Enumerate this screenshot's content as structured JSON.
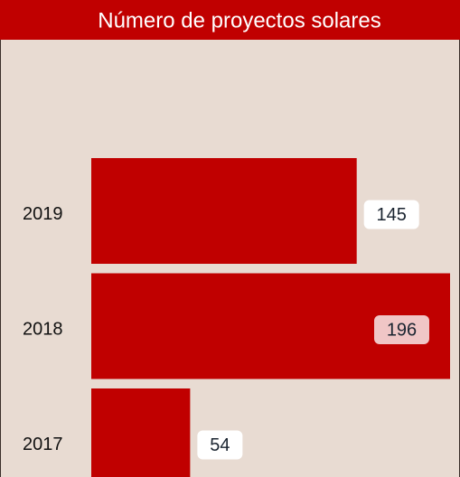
{
  "chart_data": {
    "type": "bar",
    "orientation": "horizontal",
    "title": "Número de proyectos solares",
    "categories": [
      "2019",
      "2018",
      "2017"
    ],
    "values": [
      145,
      196,
      54
    ],
    "color": "#c00000"
  }
}
